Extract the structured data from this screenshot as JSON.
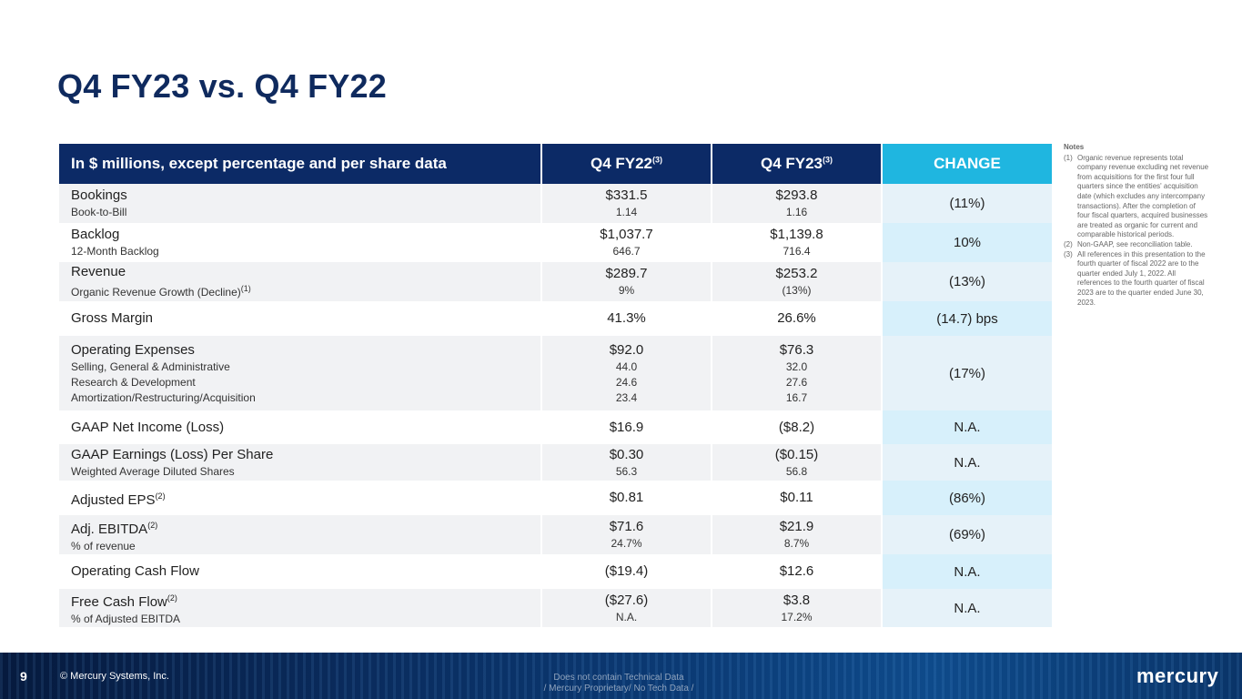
{
  "page": {
    "title": "Q4 FY23 vs. Q4 FY22"
  },
  "table": {
    "headers": {
      "label": "In $ millions, except percentage and per share data",
      "q4fy22": "Q4 FY22",
      "q4fy22_sup": "(3)",
      "q4fy23": "Q4 FY23",
      "q4fy23_sup": "(3)",
      "change": "CHANGE"
    },
    "rows": [
      {
        "label": "Bookings",
        "q4fy22": "$331.5",
        "q4fy23": "$293.8",
        "change": "(11%)",
        "subs": [
          {
            "label": "Book-to-Bill",
            "q4fy22": "1.14",
            "q4fy23": "1.16"
          }
        ]
      },
      {
        "label": "Backlog",
        "q4fy22": "$1,037.7",
        "q4fy23": "$1,139.8",
        "change": "10%",
        "subs": [
          {
            "label": "12-Month Backlog",
            "q4fy22": "646.7",
            "q4fy23": "716.4"
          }
        ]
      },
      {
        "label": "Revenue",
        "q4fy22": "$289.7",
        "q4fy23": "$253.2",
        "change": "(13%)",
        "subs": [
          {
            "label": "Organic Revenue Growth (Decline)",
            "sup": "(1)",
            "q4fy22": "9%",
            "q4fy23": "(13%)"
          }
        ]
      },
      {
        "label": "Gross Margin",
        "q4fy22": "41.3%",
        "q4fy23": "26.6%",
        "change": "(14.7) bps"
      },
      {
        "label": "Operating Expenses",
        "q4fy22": "$92.0",
        "q4fy23": "$76.3",
        "change": "(17%)",
        "subs": [
          {
            "label": "Selling, General & Administrative",
            "q4fy22": "44.0",
            "q4fy23": "32.0"
          },
          {
            "label": "Research & Development",
            "q4fy22": "24.6",
            "q4fy23": "27.6"
          },
          {
            "label": "Amortization/Restructuring/Acquisition",
            "q4fy22": "23.4",
            "q4fy23": "16.7"
          }
        ]
      },
      {
        "label": "GAAP Net Income (Loss)",
        "q4fy22": "$16.9",
        "q4fy23": "($8.2)",
        "change": "N.A."
      },
      {
        "label": "GAAP Earnings (Loss) Per Share",
        "q4fy22": "$0.30",
        "q4fy23": "($0.15)",
        "change": "N.A.",
        "subs": [
          {
            "label": "Weighted Average Diluted Shares",
            "q4fy22": "56.3",
            "q4fy23": "56.8"
          }
        ]
      },
      {
        "label": "Adjusted EPS",
        "sup": "(2)",
        "q4fy22": "$0.81",
        "q4fy23": "$0.11",
        "change": "(86%)"
      },
      {
        "label": "Adj. EBITDA",
        "sup": "(2)",
        "q4fy22": "$71.6",
        "q4fy23": "$21.9",
        "change": "(69%)",
        "subs": [
          {
            "label": "% of revenue",
            "q4fy22": "24.7%",
            "q4fy23": "8.7%"
          }
        ]
      },
      {
        "label": "Operating Cash Flow",
        "q4fy22": "($19.4)",
        "q4fy23": "$12.6",
        "change": "N.A."
      },
      {
        "label": "Free Cash Flow",
        "sup": "(2)",
        "q4fy22": "($27.6)",
        "q4fy23": "$3.8",
        "change": "N.A.",
        "subs": [
          {
            "label": "% of Adjusted EBITDA",
            "q4fy22": "N.A.",
            "q4fy23": "17.2%"
          }
        ]
      }
    ]
  },
  "notes": {
    "heading": "Notes",
    "items": [
      {
        "num": "(1)",
        "text": "Organic revenue represents total company revenue excluding net revenue from acquisitions for the first four full quarters since the entities' acquisition date (which excludes any intercompany transactions). After the completion of four fiscal quarters, acquired businesses are treated as organic for current and comparable historical periods."
      },
      {
        "num": "(2)",
        "text": "Non-GAAP, see reconciliation table."
      },
      {
        "num": "(3)",
        "text": "All references in this presentation to the fourth quarter of fiscal 2022 are to the quarter ended July 1, 2022. All references to the fourth quarter of fiscal 2023 are to the quarter ended June 30, 2023."
      }
    ]
  },
  "footer": {
    "page_number": "9",
    "copyright": "© Mercury Systems, Inc.",
    "disclaimer_line1": "Does not contain Technical Data",
    "disclaimer_line2": "/ Mercury Proprietary/ No Tech Data /",
    "logo_text": "mercury"
  }
}
